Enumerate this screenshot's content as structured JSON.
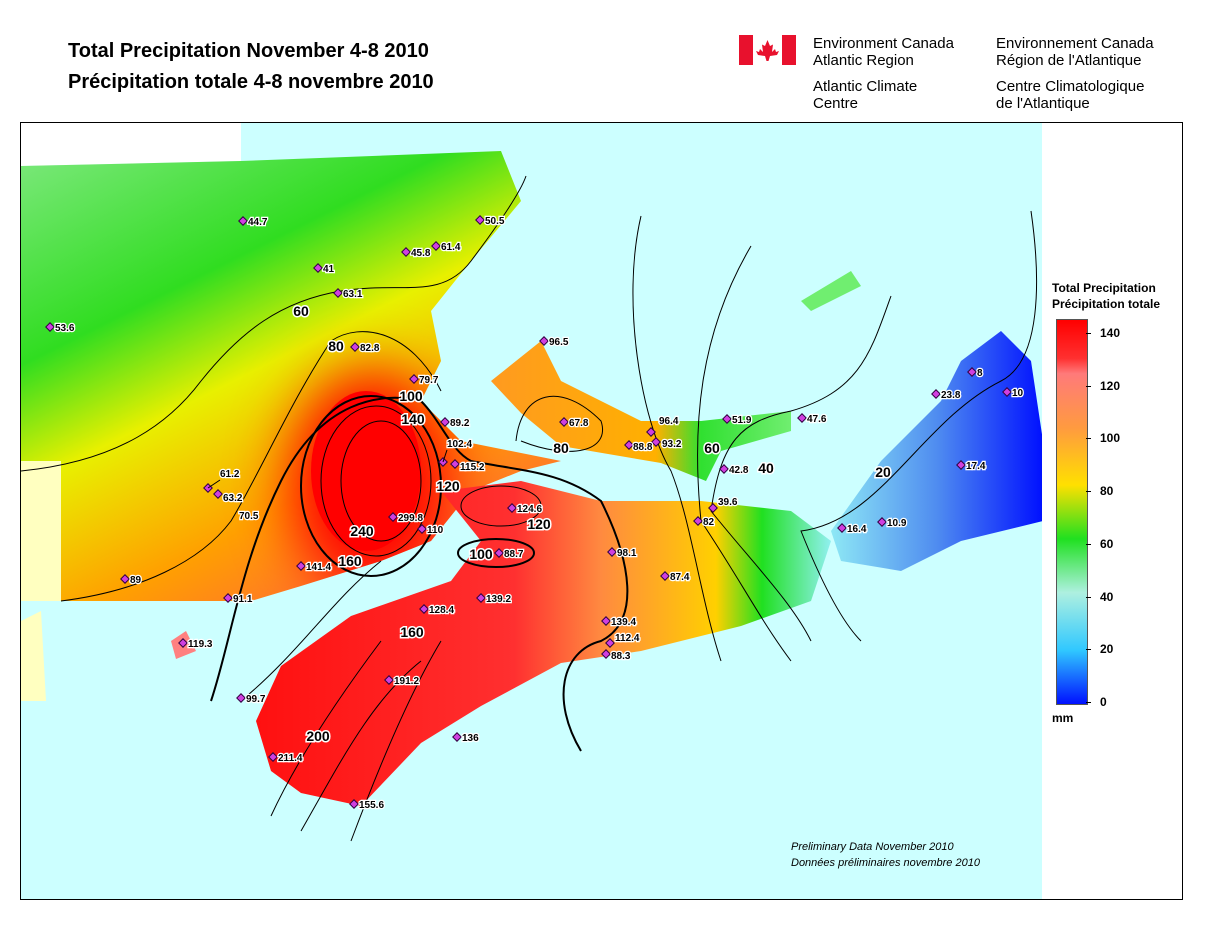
{
  "title": {
    "en": "Total Precipitation November 4-8 2010",
    "fr": "Précipitation totale 4-8 novembre 2010"
  },
  "agency": {
    "en_line1": "Environment Canada",
    "en_line2": "Atlantic Region",
    "en_line3": "Atlantic Climate",
    "en_line4": "Centre",
    "fr_line1": "Environnement Canada",
    "fr_line2": "Région de l'Atlantique",
    "fr_line3": "Centre Climatologique",
    "fr_line4": "de l'Atlantique",
    "flag_color": "#e8112d"
  },
  "legend": {
    "title_en": "Total Precipitation",
    "title_fr": "Précipitation totale",
    "unit": "mm",
    "ticks": [
      "140",
      "120",
      "100",
      "80",
      "60",
      "40",
      "20",
      "0"
    ],
    "colors": [
      "#ff0000",
      "#ff8080",
      "#ff9a40",
      "#ffe000",
      "#20e020",
      "#aef0e0",
      "#30c8ff",
      "#0010ff"
    ]
  },
  "footer": {
    "en": "Preliminary Data November 2010",
    "fr": "Données préliminaires novembre 2010"
  },
  "stations": [
    "44.7",
    "50.5",
    "61.4",
    "45.8",
    "41",
    "63.1",
    "53.6",
    "96.5",
    "82.8",
    "79.7",
    "89.2",
    "67.8",
    "96.4",
    "93.2",
    "88.8",
    "51.9",
    "47.6",
    "102.4",
    "115.2",
    "61.2",
    "63.2",
    "70.5",
    "124.6",
    "299.8",
    "110",
    "82",
    "39.6",
    "42.8",
    "88.7",
    "98.1",
    "141.4",
    "89",
    "87.4",
    "91.1",
    "139.2",
    "128.4",
    "139.4",
    "112.4",
    "88.3",
    "119.3",
    "191.2",
    "99.7",
    "136",
    "211.4",
    "155.6",
    "8",
    "10",
    "23.8",
    "17.4",
    "16.4",
    "10.9"
  ],
  "contour_labels": [
    "60",
    "80",
    "100",
    "140",
    "120",
    "120",
    "100",
    "240",
    "160",
    "160",
    "200",
    "80",
    "60",
    "40",
    "20"
  ]
}
